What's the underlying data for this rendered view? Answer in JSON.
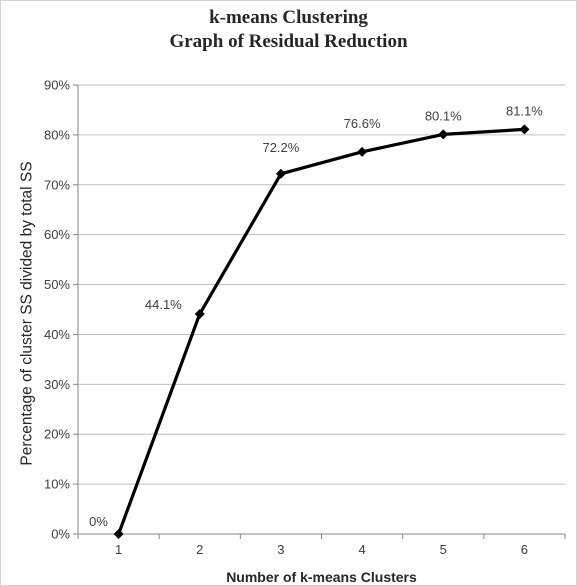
{
  "chart_data": {
    "type": "line",
    "title_lines": [
      "k-means Clustering",
      "Graph  of Residual  Reduction"
    ],
    "xlabel": "Number of k-means Clusters",
    "ylabel": "Percentage of cluster SS divided by total SS",
    "categories": [
      "1",
      "2",
      "3",
      "4",
      "5",
      "6"
    ],
    "x": [
      1,
      2,
      3,
      4,
      5,
      6
    ],
    "values": [
      0,
      44.1,
      72.2,
      76.6,
      80.1,
      81.1
    ],
    "data_labels": [
      "0%",
      "44.1%",
      "72.2%",
      "76.6%",
      "80.1%",
      "81.1%"
    ],
    "yticks": [
      0,
      10,
      20,
      30,
      40,
      50,
      60,
      70,
      80,
      90
    ],
    "ytick_labels": [
      "0%",
      "10%",
      "20%",
      "30%",
      "40%",
      "50%",
      "60%",
      "70%",
      "80%",
      "90%"
    ],
    "ylim": [
      0,
      90
    ],
    "grid": true,
    "legend": "none",
    "line_color": "#000000",
    "grid_color": "#c0c0c0",
    "marker": "diamond"
  }
}
